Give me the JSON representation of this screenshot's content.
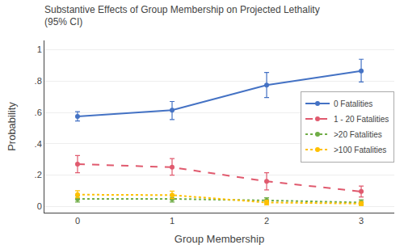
{
  "chart_data": {
    "type": "line",
    "title": "Substantive Effects of Group Membership on Projected Lethality",
    "subtitle": "(95% CI)",
    "x_label": "Group Membership",
    "y_label": "Probability",
    "x": [
      0,
      1,
      2,
      3
    ],
    "xlim": [
      -0.35,
      3.35
    ],
    "xticks": [
      0,
      1,
      2,
      3
    ],
    "ylim": [
      -0.04,
      1.06
    ],
    "yticks": [
      0,
      {
        "value": 0.2,
        "label": ".2"
      },
      {
        "value": 0.4,
        "label": ".4"
      },
      {
        "value": 0.6,
        "label": ".6"
      },
      {
        "value": 0.8,
        "label": ".8"
      },
      1
    ],
    "grid": "y",
    "legend": "right",
    "series": [
      {
        "name": "0 Fatalities",
        "color": "#4472C4",
        "line_style": "solid",
        "marker": "circle",
        "values": [
          0.575,
          0.615,
          0.775,
          0.865
        ],
        "lower": [
          0.545,
          0.555,
          0.695,
          0.795
        ],
        "upper": [
          0.605,
          0.67,
          0.855,
          0.94
        ]
      },
      {
        "name": "1 - 20 Fatalities",
        "color": "#E05A6E",
        "line_style": "dashed",
        "marker": "circle",
        "values": [
          0.27,
          0.25,
          0.16,
          0.095
        ],
        "lower": [
          0.215,
          0.2,
          0.105,
          0.06
        ],
        "upper": [
          0.325,
          0.305,
          0.215,
          0.13
        ]
      },
      {
        "name": ">20 Fatalities",
        "color": "#70AD47",
        "line_style": "dotted",
        "marker": "circle",
        "values": [
          0.048,
          0.048,
          0.038,
          0.025
        ],
        "lower": [
          0.028,
          0.028,
          0.018,
          0.008
        ],
        "upper": [
          0.068,
          0.068,
          0.055,
          0.042
        ]
      },
      {
        "name": ">100 Fatalities",
        "color": "#FFC000",
        "line_style": "dotted",
        "marker": "circle",
        "values": [
          0.075,
          0.072,
          0.025,
          0.018
        ],
        "lower": [
          0.055,
          0.05,
          0.01,
          0.006
        ],
        "upper": [
          0.1,
          0.098,
          0.04,
          0.03
        ]
      }
    ]
  }
}
